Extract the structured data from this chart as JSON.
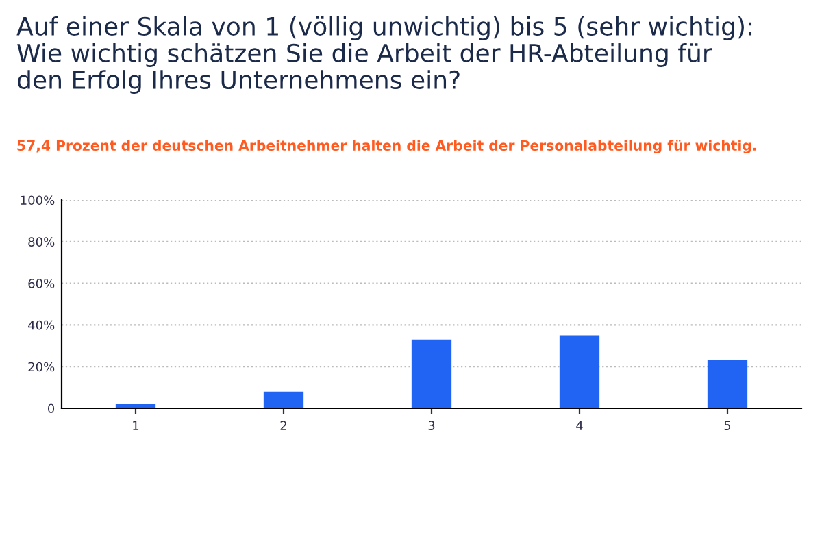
{
  "chart_data": {
    "type": "bar",
    "title": "Auf einer Skala von 1 (völlig unwichtig) bis 5 (sehr wichtig):\nWie wichtig schätzen Sie die Arbeit der HR-Abteilung für\nden Erfolg Ihres Unternehmens ein?",
    "subtitle": "57,4 Prozent der deutschen Arbeitnehmer halten die Arbeit der Personalabteilung für wichtig.",
    "categories": [
      "1",
      "2",
      "3",
      "4",
      "5"
    ],
    "series": [
      {
        "color": "#2164f3",
        "values": [
          2,
          8,
          33,
          35,
          23
        ]
      }
    ],
    "ylim": [
      0,
      100
    ],
    "yticks": [
      {
        "value": 0,
        "label": "0"
      },
      {
        "value": 20,
        "label": "20%"
      },
      {
        "value": 40,
        "label": "40%"
      },
      {
        "value": 60,
        "label": "60%"
      },
      {
        "value": 80,
        "label": "80%"
      },
      {
        "value": 100,
        "label": "100%"
      }
    ],
    "grid": "y",
    "legend": false
  }
}
